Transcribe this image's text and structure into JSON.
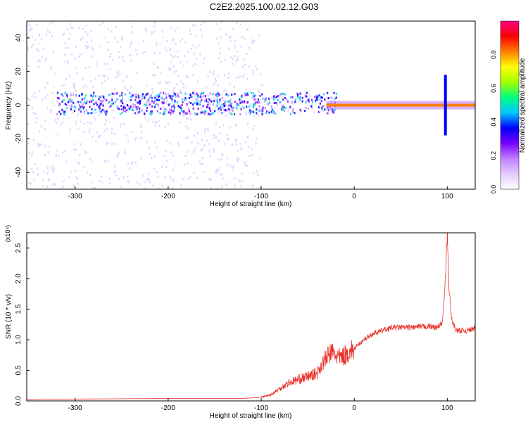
{
  "title": "C2E2.2025.100.02.12.G03",
  "chart_data": [
    {
      "type": "heatmap",
      "xlabel": "Height of straight line (km)",
      "ylabel": "Frequency (Hz)",
      "xlim": [
        -352,
        130
      ],
      "ylim": [
        -50,
        50
      ],
      "x_ticks": [
        "-300",
        "-200",
        "-100",
        "0",
        "100"
      ],
      "y_ticks": [
        "-40",
        "-20",
        "0",
        "20",
        "40"
      ],
      "colorbar": {
        "label": "Normalized spectral amplitude",
        "range": [
          0.0,
          1.0
        ],
        "ticks": [
          "0.0",
          "0.2",
          "0.4",
          "0.6",
          "0.8"
        ],
        "colors": [
          "#ffffff",
          "#e3ccff",
          "#c080ff",
          "#7a00ff",
          "#0000ff",
          "#00c8ff",
          "#00ff80",
          "#a0ff00",
          "#ffff00",
          "#ff8000",
          "#ff0000",
          "#ff0080"
        ]
      },
      "features": [
        {
          "name": "scattered noise",
          "x_range": [
            -352,
            -100
          ],
          "y_range": [
            -50,
            50
          ],
          "amplitude": 0.1
        },
        {
          "name": "near-zero band",
          "x_range": [
            -320,
            -20
          ],
          "y_range": [
            -5,
            8
          ],
          "amplitude": 0.35
        },
        {
          "name": "carrier line",
          "x_range": [
            -30,
            130
          ],
          "y": 0,
          "amplitude": 0.9
        },
        {
          "name": "disturbance near 100 km",
          "x": 98,
          "y_range": [
            -18,
            18
          ],
          "amplitude": 0.4
        }
      ]
    },
    {
      "type": "line",
      "xlabel": "Height of straight line (km)",
      "ylabel": "SNR (10 * v/v)",
      "yscale_label": "(x10⁴)",
      "xlim": [
        -352,
        130
      ],
      "ylim": [
        0,
        2.75
      ],
      "x_ticks": [
        "-300",
        "-200",
        "-100",
        "0",
        "100"
      ],
      "y_ticks": [
        "0.0",
        "0.5",
        "1.0",
        "1.5",
        "2.0",
        "2.5"
      ],
      "color": "#e8332b",
      "series": [
        {
          "x": [
            -352,
            -300,
            -200,
            -120,
            -100,
            -90,
            -80,
            -70,
            -60,
            -50,
            -40,
            -35,
            -30,
            -25,
            -20,
            -15,
            -10,
            0,
            10,
            20,
            30,
            40,
            60,
            80,
            90,
            95,
            98,
            100,
            102,
            105,
            110,
            120,
            130
          ],
          "y": [
            0.02,
            0.03,
            0.04,
            0.04,
            0.06,
            0.1,
            0.2,
            0.3,
            0.35,
            0.4,
            0.45,
            0.6,
            0.7,
            0.8,
            0.75,
            0.7,
            0.75,
            0.85,
            1.0,
            1.1,
            1.15,
            1.2,
            1.2,
            1.22,
            1.2,
            1.3,
            2.0,
            2.75,
            1.8,
            1.3,
            1.15,
            1.15,
            1.18
          ]
        }
      ]
    }
  ]
}
